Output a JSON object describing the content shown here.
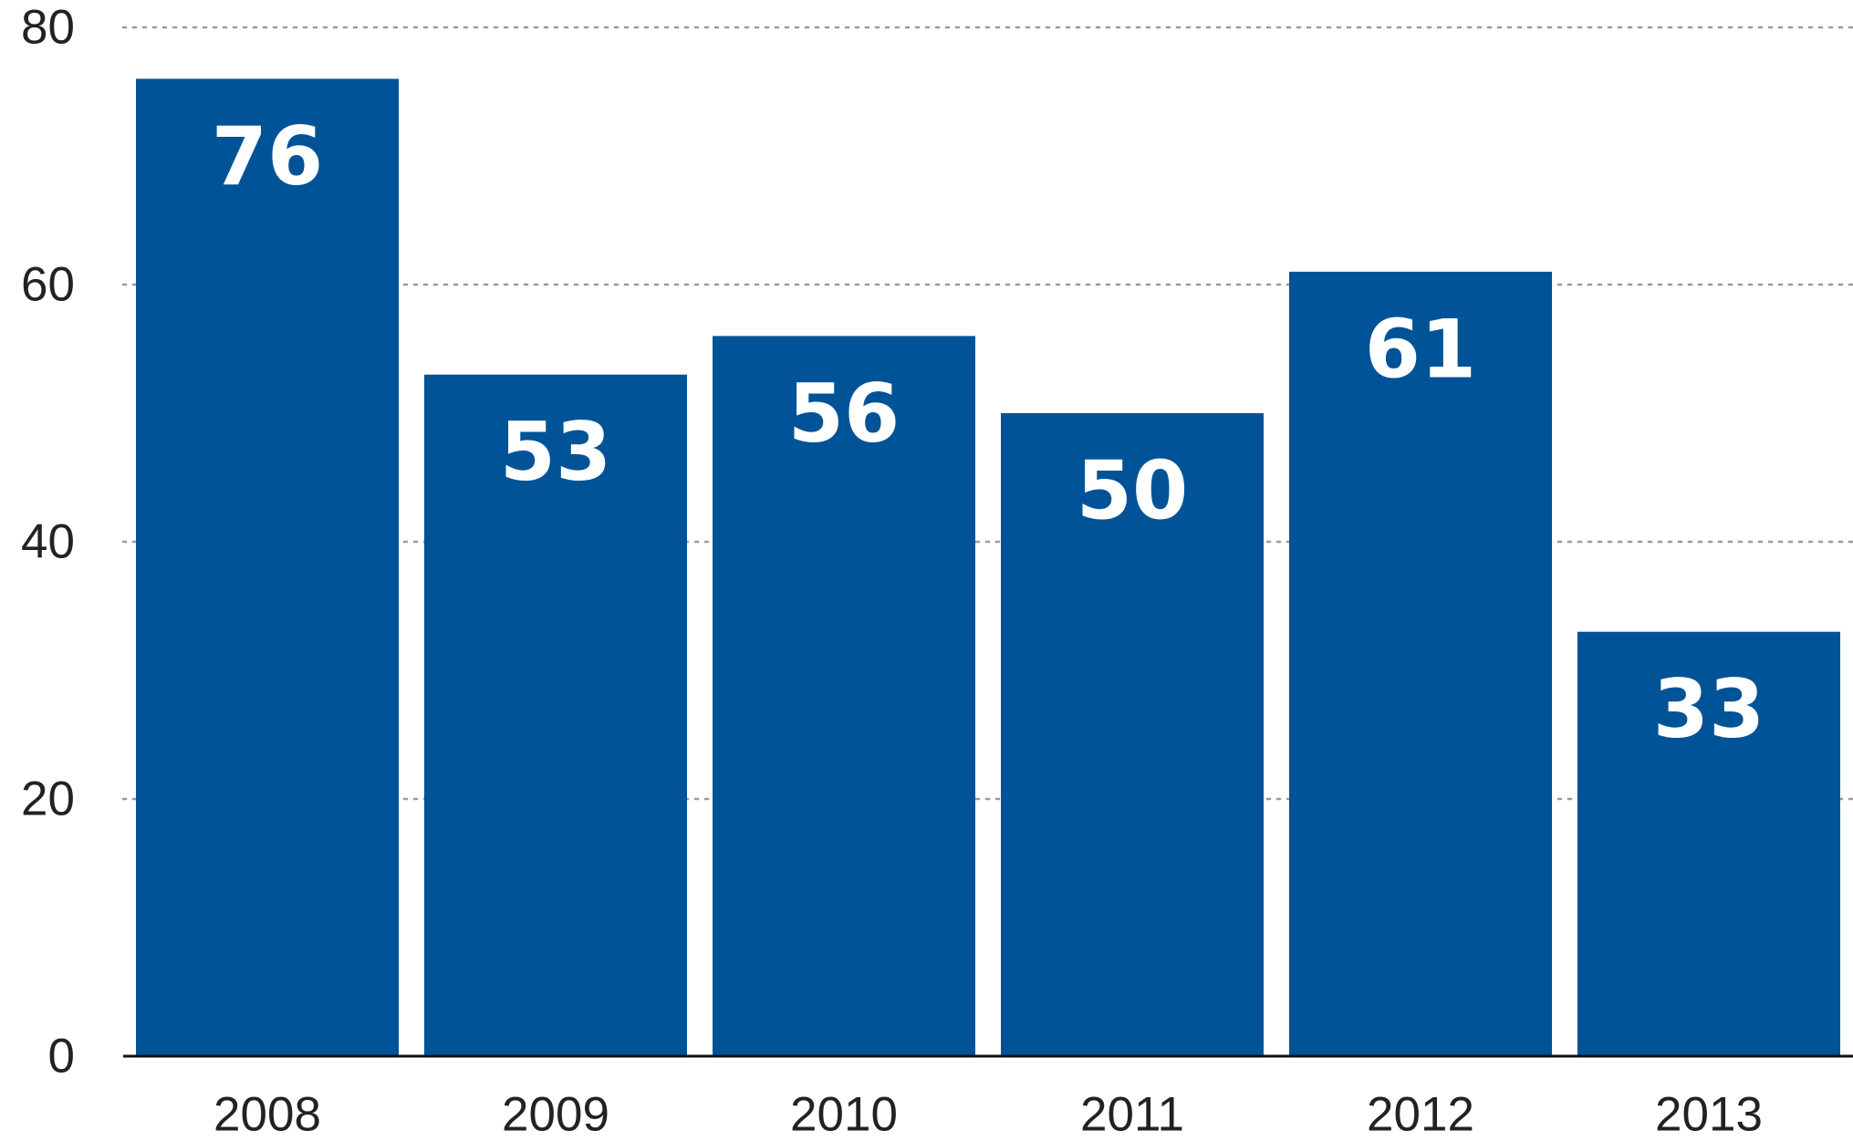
{
  "colors": {
    "bar": "#005396",
    "bar_label": "#ffffff",
    "grid": "#9a9a9a",
    "axis": "#111111",
    "tick_text": "#222222",
    "background": "#ffffff"
  },
  "chart_data": {
    "type": "bar",
    "categories": [
      "2008",
      "2009",
      "2010",
      "2011",
      "2012",
      "2013"
    ],
    "values": [
      76,
      53,
      56,
      50,
      61,
      33
    ],
    "data_labels": [
      "76",
      "53",
      "56",
      "50",
      "61",
      "33"
    ],
    "ylim": [
      0,
      80
    ],
    "yticks": [
      0,
      20,
      40,
      60,
      80
    ],
    "ytick_labels": [
      "0",
      "20",
      "40",
      "60",
      "80"
    ],
    "grid": true,
    "grid_style": "dotted",
    "legend": "none",
    "title": "",
    "xlabel": "",
    "ylabel": ""
  }
}
